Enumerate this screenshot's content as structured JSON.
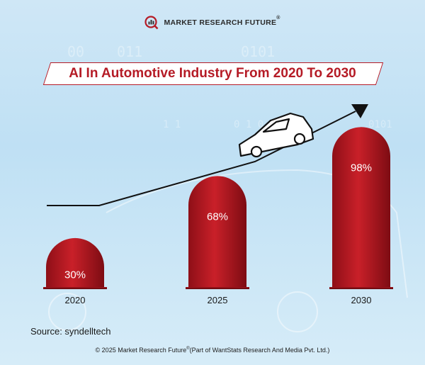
{
  "brand": {
    "name": "MARKET RESEARCH FUTURE",
    "reg": "®"
  },
  "chart_data": {
    "type": "bar",
    "title": "AI In Automotive Industry From 2020 To 2030",
    "categories": [
      "2020",
      "2025",
      "2030"
    ],
    "values": [
      30,
      68,
      98
    ],
    "value_labels": [
      "30%",
      "68%",
      "98%"
    ],
    "ylim": [
      0,
      100
    ],
    "grid": false,
    "bar_color": "#b51b26"
  },
  "source": "Source: syndelltech",
  "footer": {
    "text_before": "© 2025 Market Research Future",
    "reg": "®",
    "text_after": "(Part of WantStats Research And Media Pvt. Ltd.)"
  },
  "colors": {
    "accent": "#b51b26",
    "background": "#c9e4f5"
  }
}
